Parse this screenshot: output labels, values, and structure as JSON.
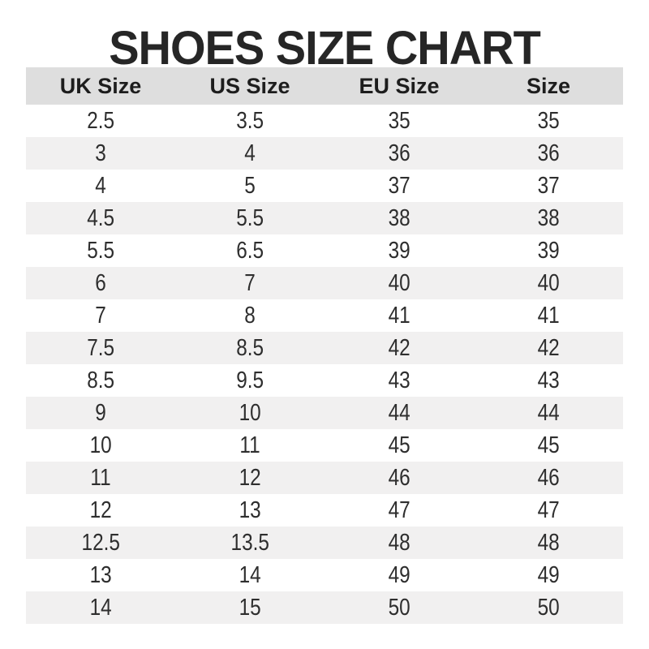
{
  "title": "SHOES SIZE CHART",
  "colors": {
    "header_bg": "#dedede",
    "stripe_bg": "#f1f0f0",
    "title_text": "#262626",
    "body_text": "#2e2e2e"
  },
  "chart_data": {
    "type": "table",
    "title": "SHOES SIZE CHART",
    "columns": [
      "UK Size",
      "US Size",
      "EU Size",
      "Size"
    ],
    "rows": [
      [
        "2.5",
        "3.5",
        "35",
        "35"
      ],
      [
        "3",
        "4",
        "36",
        "36"
      ],
      [
        "4",
        "5",
        "37",
        "37"
      ],
      [
        "4.5",
        "5.5",
        "38",
        "38"
      ],
      [
        "5.5",
        "6.5",
        "39",
        "39"
      ],
      [
        "6",
        "7",
        "40",
        "40"
      ],
      [
        "7",
        "8",
        "41",
        "41"
      ],
      [
        "7.5",
        "8.5",
        "42",
        "42"
      ],
      [
        "8.5",
        "9.5",
        "43",
        "43"
      ],
      [
        "9",
        "10",
        "44",
        "44"
      ],
      [
        "10",
        "11",
        "45",
        "45"
      ],
      [
        "11",
        "12",
        "46",
        "46"
      ],
      [
        "12",
        "13",
        "47",
        "47"
      ],
      [
        "12.5",
        "13.5",
        "48",
        "48"
      ],
      [
        "13",
        "14",
        "49",
        "49"
      ],
      [
        "14",
        "15",
        "50",
        "50"
      ]
    ],
    "layout": {
      "striped": true,
      "first_data_row_background": "white",
      "header_background": "gray-band",
      "grid_lines": false
    }
  }
}
